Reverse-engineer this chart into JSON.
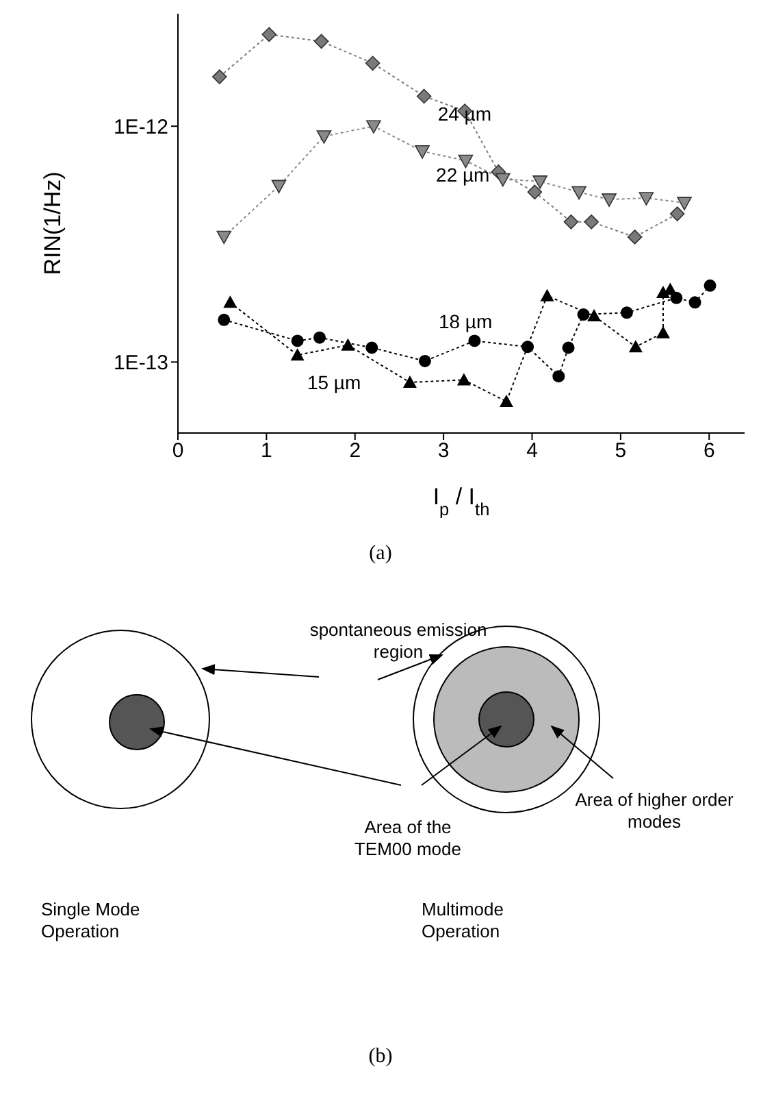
{
  "chart_data": {
    "type": "line",
    "xlabel": "I$_{p}$ / I$_{th}$",
    "ylabel": "RIN(1/Hz)",
    "log": "y",
    "xlim": [
      0,
      6.4
    ],
    "xticks": [
      0,
      1,
      2,
      3,
      4,
      5,
      6
    ],
    "ylim": [
      5e-14,
      3e-12
    ],
    "yticks": [
      {
        "value": 1e-13,
        "label": "1E-13"
      },
      {
        "value": 1e-12,
        "label": "1E-12"
      }
    ],
    "grid": false,
    "legend": false,
    "line_style": "dotted",
    "series": [
      {
        "name": "24 µm",
        "color": "#7a7a7a",
        "marker": "diamond",
        "x": [
          0.47,
          1.03,
          1.62,
          2.2,
          2.78,
          3.24,
          3.62,
          4.03,
          4.44,
          4.67,
          5.16,
          5.64
        ],
        "values": [
          1.62e-12,
          2.45e-12,
          2.29e-12,
          1.85e-12,
          1.34e-12,
          1.16e-12,
          6.4e-13,
          5.26e-13,
          3.93e-13,
          3.93e-13,
          3.39e-13,
          4.25e-13
        ]
      },
      {
        "name": "22 µm",
        "color": "#8a8a8a",
        "marker": "triangle-down",
        "x": [
          0.52,
          1.14,
          1.65,
          2.21,
          2.76,
          3.25,
          3.67,
          4.09,
          4.53,
          4.87,
          5.29,
          5.72
        ],
        "values": [
          3.4e-13,
          5.58e-13,
          9.06e-13,
          1e-12,
          7.83e-13,
          7.14e-13,
          5.96e-13,
          5.83e-13,
          5.25e-13,
          4.89e-13,
          4.96e-13,
          4.73e-13
        ]
      },
      {
        "name": "18 µm",
        "color": "#000000",
        "marker": "circle",
        "x": [
          0.52,
          1.35,
          1.6,
          2.19,
          2.79,
          3.35,
          3.95,
          4.3,
          4.41,
          4.58,
          5.07,
          5.63,
          5.84,
          6.01
        ],
        "values": [
          1.51e-13,
          1.23e-13,
          1.27e-13,
          1.15e-13,
          1.01e-13,
          1.23e-13,
          1.16e-13,
          8.7e-14,
          1.15e-13,
          1.59e-13,
          1.62e-13,
          1.87e-13,
          1.79e-13,
          2.11e-13
        ]
      },
      {
        "name": "15 µm",
        "color": "#000000",
        "marker": "triangle",
        "x": [
          0.59,
          1.35,
          1.92,
          2.62,
          3.23,
          3.71,
          4.17,
          4.7,
          5.17,
          5.48,
          5.48,
          5.56
        ],
        "values": [
          1.79e-13,
          1.07e-13,
          1.18e-13,
          8.2e-14,
          8.4e-14,
          6.8e-14,
          1.91e-13,
          1.57e-13,
          1.16e-13,
          1.33e-13,
          1.97e-13,
          2.03e-13
        ]
      }
    ],
    "annotations": [
      "(a)",
      "spontaneous emission region",
      "Area of the TEM00 mode",
      "Area of higher order modes",
      "Single Mode Operation",
      "Multimode Operation",
      "(b)"
    ]
  }
}
